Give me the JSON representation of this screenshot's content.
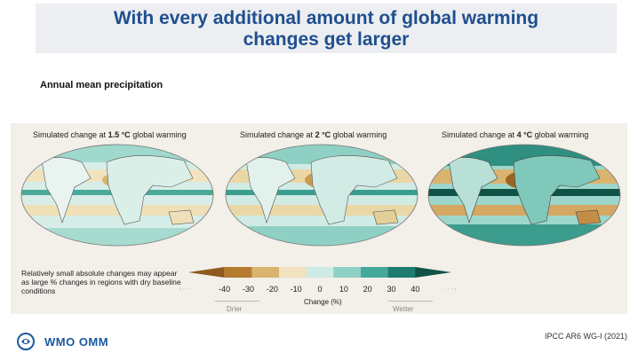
{
  "header": {
    "title_line1": "With every additional amount of global warming",
    "title_line2": "changes get larger"
  },
  "subtitle": "Annual mean precipitation",
  "panels": [
    {
      "prefix": "Simulated change at ",
      "bold": "1.5 °C",
      "suffix": " global warming"
    },
    {
      "prefix": "Simulated change at ",
      "bold": "2 °C",
      "suffix": " global warming"
    },
    {
      "prefix": "Simulated change at ",
      "bold": "4 °C",
      "suffix": " global warming"
    }
  ],
  "note": "Relatively small absolute changes may appear as large % changes in regions with dry baseline conditions",
  "colorbar": {
    "ticks": [
      "-40",
      "-30",
      "-20",
      "-10",
      "0",
      "10",
      "20",
      "30",
      "40"
    ],
    "label": "Change (%)",
    "drier": "Drier",
    "wetter": "Wetter",
    "colors": [
      "#8c5a1c",
      "#b57c2e",
      "#d9b46f",
      "#f1e3bf",
      "#cdeae4",
      "#8fd0c4",
      "#43a99a",
      "#1f7c70",
      "#0f5248"
    ]
  },
  "footer": {
    "logo_text": "WMO OMM",
    "source": "IPCC AR6 WG-I (2021)"
  }
}
